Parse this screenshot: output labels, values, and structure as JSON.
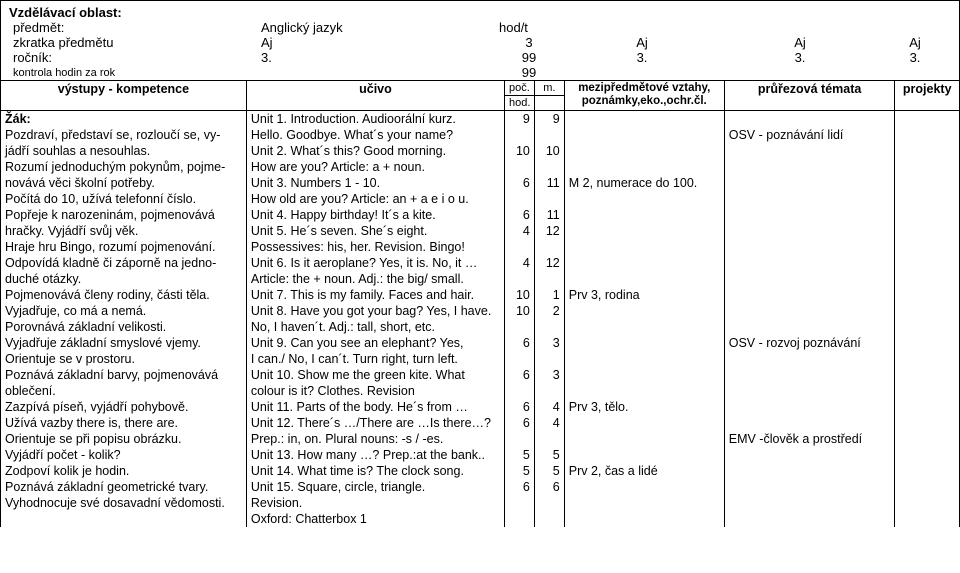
{
  "header": {
    "area_label": "Vzdělávací oblast:",
    "subject_label": "předmět:",
    "subject_value": "Anglický jazyk",
    "hodt": "hod/t",
    "abbrev_label": "zkratka předmětu",
    "abbrev_value": "Aj",
    "abbrev_col": "3",
    "aj2": "Aj",
    "aj3": "Aj",
    "aj4": "Aj",
    "year_label": "ročník:",
    "year_value": "3.",
    "year_col": "99",
    "y2": "3.",
    "y3": "3.",
    "y4": "3.",
    "check_label": "kontrola hodin za rok",
    "check_value": "99"
  },
  "cols": {
    "outputs": "výstupy - kompetence",
    "ucivo": "učivo",
    "poc": "poč.",
    "hod": "hod.",
    "m": "m.",
    "mz": "mezipředmětové vztahy, poznámky,eko.,ochr.čl.",
    "pt": "průřezová témata",
    "pr": "projekty"
  },
  "rows": [
    {
      "o": "Žák:",
      "u": "Unit 1. Introduction. Audioorální kurz.",
      "p": "9",
      "m": "9",
      "mz": "",
      "pt": "",
      "pr": ""
    },
    {
      "o": "Pozdraví, představí se, rozloučí se, vy-",
      "u": "Hello. Goodbye. What´s your name?",
      "p": "",
      "m": "",
      "mz": "",
      "pt": "OSV - poznávání lidí",
      "pr": ""
    },
    {
      "o": "jádří souhlas a nesouhlas.",
      "u": "Unit 2. What´s this? Good morning.",
      "p": "10",
      "m": "10",
      "mz": "",
      "pt": "",
      "pr": ""
    },
    {
      "o": "Rozumí jednoduchým pokynům, pojme-",
      "u": "How are you? Article: a + noun.",
      "p": "",
      "m": "",
      "mz": "",
      "pt": "",
      "pr": ""
    },
    {
      "o": "novává věci školní potřeby.",
      "u": "Unit 3. Numbers 1 - 10.",
      "p": "6",
      "m": "11",
      "mz": "M 2, numerace do 100.",
      "pt": "",
      "pr": ""
    },
    {
      "o": "Počítá do 10, užívá telefonní číslo.",
      "u": "How old are you? Article: an + a e i o u.",
      "p": "",
      "m": "",
      "mz": "",
      "pt": "",
      "pr": ""
    },
    {
      "o": "Popřeje k narozeninám, pojmenovává",
      "u": "Unit 4. Happy birthday! It´s a kite.",
      "p": "6",
      "m": "11",
      "mz": "",
      "pt": "",
      "pr": ""
    },
    {
      "o": "hračky. Vyjádří svůj věk.",
      "u": "Unit 5. He´s seven. She´s eight.",
      "p": "4",
      "m": "12",
      "mz": "",
      "pt": "",
      "pr": ""
    },
    {
      "o": "Hraje hru Bingo, rozumí pojmenování.",
      "u": "Possessives: his, her. Revision. Bingo!",
      "p": "",
      "m": "",
      "mz": "",
      "pt": "",
      "pr": ""
    },
    {
      "o": "Odpovídá kladně či záporně na jedno-",
      "u": "Unit 6. Is it aeroplane? Yes, it is. No, it …",
      "p": "4",
      "m": "12",
      "mz": "",
      "pt": "",
      "pr": ""
    },
    {
      "o": "duché otázky.",
      "u": "Article: the + noun. Adj.: the big/ small.",
      "p": "",
      "m": "",
      "mz": "",
      "pt": "",
      "pr": ""
    },
    {
      "o": "Pojmenovává členy rodiny, části těla.",
      "u": "Unit 7. This is my family. Faces and hair.",
      "p": "10",
      "m": "1",
      "mz": "Prv 3, rodina",
      "pt": "",
      "pr": ""
    },
    {
      "o": "Vyjadřuje, co má a nemá.",
      "u": "Unit 8. Have you got your bag? Yes, I have.",
      "p": "10",
      "m": "2",
      "mz": "",
      "pt": "",
      "pr": ""
    },
    {
      "o": "Porovnává základní velikosti.",
      "u": "No, I haven´t. Adj.: tall, short, etc.",
      "p": "",
      "m": "",
      "mz": "",
      "pt": "",
      "pr": ""
    },
    {
      "o": "Vyjadřuje základní smyslové vjemy.",
      "u": "Unit 9. Can you see an elephant?  Yes,",
      "p": "6",
      "m": "3",
      "mz": "",
      "pt": "OSV - rozvoj poznávání",
      "pr": ""
    },
    {
      "o": "Orientuje se v prostoru.",
      "u": "I can./  No, I can´t.  Turn right, turn left.",
      "p": "",
      "m": "",
      "mz": "",
      "pt": "",
      "pr": ""
    },
    {
      "o": "Poznává základní barvy, pojmenovává",
      "u": "Unit 10. Show me the green kite. What",
      "p": "6",
      "m": "3",
      "mz": "",
      "pt": "",
      "pr": ""
    },
    {
      "o": "oblečení.",
      "u": "colour is it? Clothes. Revision",
      "p": "",
      "m": "",
      "mz": "",
      "pt": "",
      "pr": ""
    },
    {
      "o": "Zazpívá píseň, vyjádří pohybově.",
      "u": "Unit 11. Parts of the body. He´s from …",
      "p": "6",
      "m": "4",
      "mz": "Prv 3, tělo.",
      "pt": "",
      "pr": ""
    },
    {
      "o": "Užívá vazby there is, there are.",
      "u": "Unit 12. There´s …/There are …Is there…?",
      "p": "6",
      "m": "4",
      "mz": "",
      "pt": "",
      "pr": ""
    },
    {
      "o": "Orientuje se při popisu obrázku.",
      "u": "Prep.: in, on. Plural nouns: -s / -es.",
      "p": "",
      "m": "",
      "mz": "",
      "pt": "EMV -člověk a prostředí",
      "pr": ""
    },
    {
      "o": "Vyjádří počet - kolik?",
      "u": "Unit 13. How many …? Prep.:at the bank..",
      "p": "5",
      "m": "5",
      "mz": "",
      "pt": "",
      "pr": ""
    },
    {
      "o": "Zodpoví kolik je hodin.",
      "u": "Unit 14. What time is? The clock song.",
      "p": "5",
      "m": "5",
      "mz": "Prv 2, čas a lidé",
      "pt": "",
      "pr": ""
    },
    {
      "o": "Poznává základní geometrické tvary.",
      "u": "Unit 15. Square, circle, triangle.",
      "p": "6",
      "m": "6",
      "mz": "",
      "pt": "",
      "pr": ""
    },
    {
      "o": "Vyhodnocuje své dosavadní vědomosti.",
      "u": "Revision.",
      "p": "",
      "m": "",
      "mz": "",
      "pt": "",
      "pr": ""
    },
    {
      "o": "",
      "u": "Oxford: Chatterbox 1",
      "p": "",
      "m": "",
      "mz": "",
      "pt": "",
      "pr": ""
    }
  ]
}
